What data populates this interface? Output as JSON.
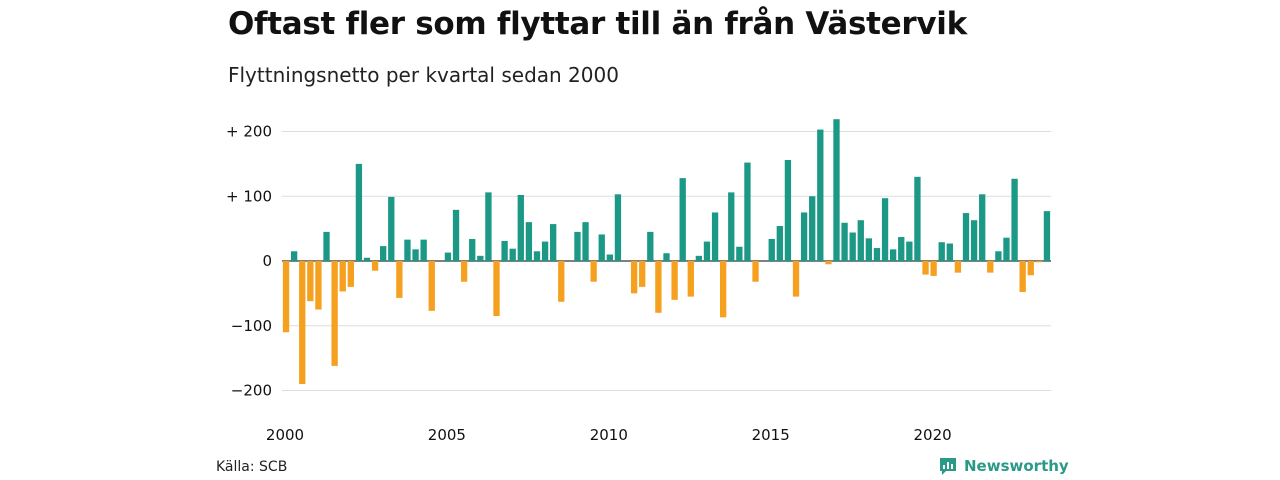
{
  "title": "Oftast fler som flyttar till än från Västervik",
  "subtitle": "Flyttningsnetto per kvartal sedan 2000",
  "source": "Källa: SCB",
  "brand": {
    "name": "Newsworthy",
    "icon": "newsworthy-logo-icon"
  },
  "colors": {
    "positive": "#1b9886",
    "negative": "#f5a01f",
    "grid": "#dddddd",
    "zero": "#333333"
  },
  "chart_data": {
    "type": "bar",
    "title": "Oftast fler som flyttar till än från Västervik",
    "subtitle": "Flyttningsnetto per kvartal sedan 2000",
    "xlabel": "",
    "ylabel": "",
    "ylim": [
      -220,
      220
    ],
    "grid": true,
    "legend": "none",
    "y_ticks": [
      {
        "value": 200,
        "label": "+ 200"
      },
      {
        "value": 100,
        "label": "+ 100"
      },
      {
        "value": 0,
        "label": "0"
      },
      {
        "value": -100,
        "label": "−100"
      },
      {
        "value": -200,
        "label": "−200"
      }
    ],
    "x_ticks": [
      {
        "value": 2000,
        "label": "2000"
      },
      {
        "value": 2005,
        "label": "2005"
      },
      {
        "value": 2010,
        "label": "2010"
      },
      {
        "value": 2015,
        "label": "2015"
      },
      {
        "value": 2020,
        "label": "2020"
      }
    ],
    "x_start": 2000,
    "periods_per_year": 4,
    "values": [
      -110,
      15,
      -190,
      -62,
      -75,
      45,
      -162,
      -47,
      -40,
      150,
      5,
      -15,
      23,
      99,
      -57,
      33,
      18,
      33,
      -77,
      0,
      13,
      79,
      -32,
      34,
      8,
      106,
      -85,
      31,
      19,
      102,
      60,
      15,
      30,
      57,
      -63,
      0,
      45,
      60,
      -32,
      41,
      10,
      103,
      0,
      -50,
      -40,
      45,
      -80,
      12,
      -60,
      128,
      -55,
      8,
      30,
      75,
      -87,
      106,
      22,
      152,
      -32,
      0,
      34,
      54,
      156,
      -55,
      75,
      100,
      203,
      -5,
      219,
      59,
      44,
      63,
      35,
      20,
      97,
      18,
      37,
      30,
      130,
      -21,
      -23,
      29,
      27,
      -18,
      74,
      63,
      103,
      -18,
      15,
      36,
      127,
      -48,
      -22,
      -2,
      77
    ]
  }
}
